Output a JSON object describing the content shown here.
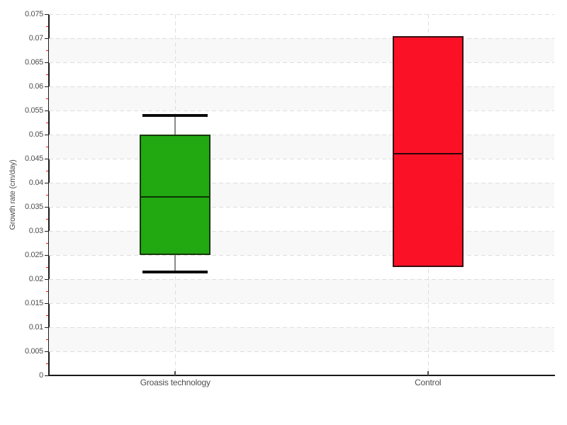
{
  "chart_data": {
    "type": "boxplot",
    "title": "",
    "ylabel": "Growth rate (cm/day)",
    "xlabel": "",
    "ylim": [
      0,
      0.075
    ],
    "y_major_step": 0.005,
    "y_minor_step": 0.0025,
    "y_tick_labels": [
      "0",
      "0.005",
      "0.01",
      "0.015",
      "0.02",
      "0.025",
      "0.03",
      "0.035",
      "0.04",
      "0.045",
      "0.05",
      "0.055",
      "0.06",
      "0.065",
      "0.07",
      "0.075"
    ],
    "categories": [
      "Groasis technology",
      "Control"
    ],
    "series": [
      {
        "name": "Groasis technology",
        "fill": "#22a811",
        "border": "#16380a",
        "median_color": "#0e3503",
        "whisker_low": 0.0215,
        "q1": 0.025,
        "median": 0.037,
        "q3": 0.05,
        "whisker_high": 0.054
      },
      {
        "name": "Control",
        "fill": "#fa1126",
        "border": "#3a0c10",
        "median_color": "#2a050a",
        "whisker_low": null,
        "q1": 0.0225,
        "median": 0.046,
        "q3": 0.0705,
        "whisker_high": null
      }
    ],
    "grid": {
      "horizontal": "dashed line at every 0.005",
      "vertical": "dashed line at each category center",
      "alternating_bands": "light shaded band on every other 0.005 interval starting at 0.005-0.01"
    },
    "legend": "none"
  },
  "style": {
    "background": "#ffffff",
    "band_fill": "#f8f8f8",
    "grid_color": "#dedede",
    "axis_color": "#1a1a1a",
    "major_tick_color": "#1a1a1a",
    "minor_tick_color": "#ee1111",
    "text_color": "#4f4f4f",
    "whisker_stem_color": "#8a8a8a",
    "whisker_cap_color": "#0a0a0a"
  }
}
